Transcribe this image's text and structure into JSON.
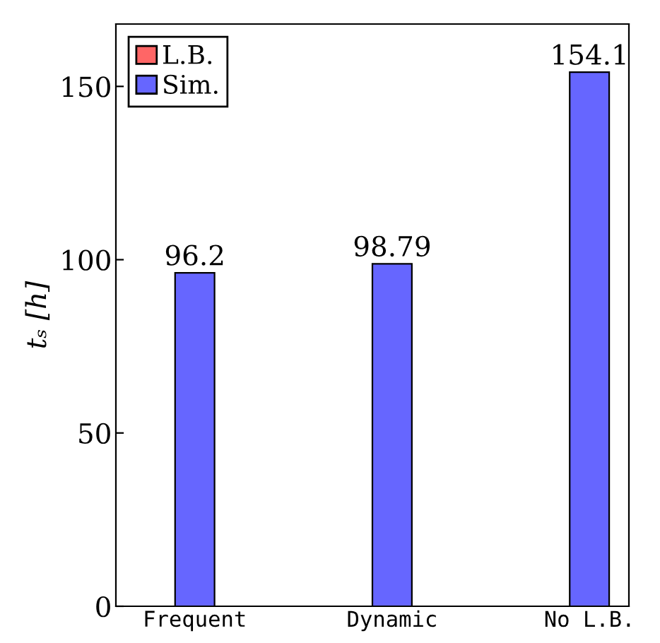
{
  "chart_data": {
    "type": "bar",
    "ylabel": "tₛ [h]",
    "categories": [
      "Frequent",
      "Dynamic",
      "No L.B."
    ],
    "series": [
      {
        "name": "L.B.",
        "color": "#ff6666",
        "values": [
          null,
          null,
          null
        ]
      },
      {
        "name": "Sim.",
        "color": "#6666ff",
        "values": [
          96.2,
          98.79,
          154.1
        ]
      }
    ],
    "ylim": [
      0,
      168
    ],
    "yticks": [
      0,
      50,
      100,
      150
    ],
    "data_labels": true,
    "legend": "top left",
    "grid": false
  }
}
